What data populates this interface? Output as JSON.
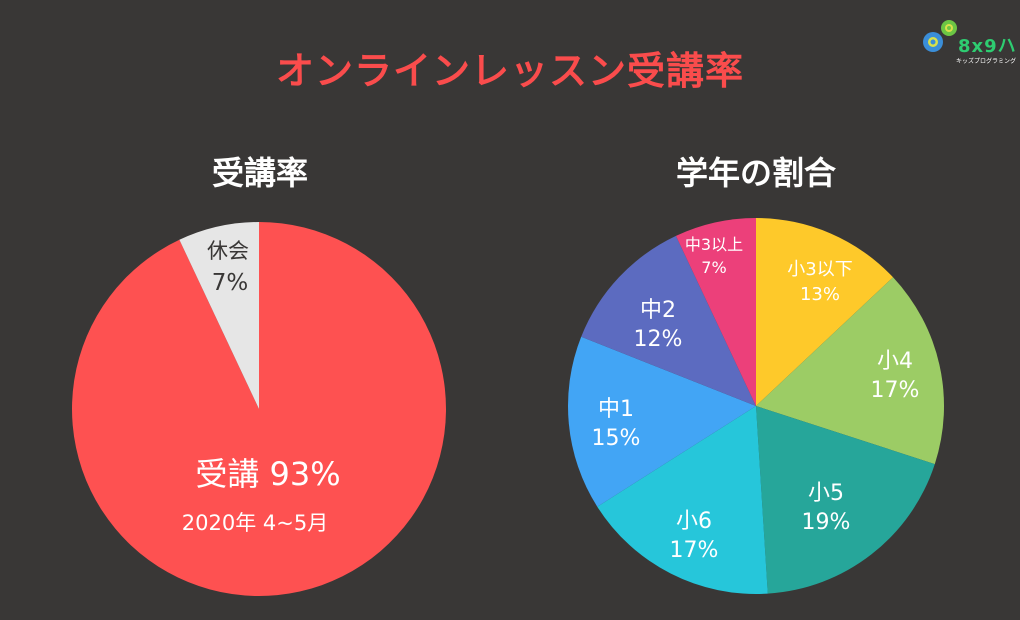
{
  "header": {
    "title": "オンラインレッスン受講率",
    "title_color": "#fa4c4c",
    "background": "#393736"
  },
  "logo": {
    "text": "8x9ハ",
    "subtext": "キッズプログラミング",
    "icon": "gears-icon"
  },
  "chart_data": [
    {
      "type": "pie",
      "title": "受講率",
      "categories": [
        "受講",
        "休会"
      ],
      "values": [
        93,
        7
      ],
      "colors": [
        "#fe5151",
        "#e6e6e6"
      ],
      "labels": [
        {
          "line1": "受講 93%",
          "line2": "2020年 4~5月"
        },
        {
          "line1": "休会",
          "line2": "7%"
        }
      ],
      "start_angle": "12 o'clock, counterclockwise for 休会"
    },
    {
      "type": "pie",
      "title": "学年の割合",
      "categories": [
        "小3以下",
        "小4",
        "小5",
        "小6",
        "中1",
        "中2",
        "中3以上"
      ],
      "values": [
        13,
        17,
        19,
        17,
        15,
        12,
        7
      ],
      "colors": [
        "#fec92a",
        "#9ccc65",
        "#26a69a",
        "#26c6da",
        "#42a5f5",
        "#5c6bc0",
        "#ec407a"
      ],
      "labels": [
        {
          "line1": "小3以下",
          "line2": "13%"
        },
        {
          "line1": "小4",
          "line2": "17%"
        },
        {
          "line1": "小5",
          "line2": "19%"
        },
        {
          "line1": "小6",
          "line2": "17%"
        },
        {
          "line1": "中1",
          "line2": "15%"
        },
        {
          "line1": "中2",
          "line2": "12%"
        },
        {
          "line1": "中3以上",
          "line2": "7%"
        }
      ],
      "start_angle": "12 o'clock, clockwise"
    }
  ]
}
